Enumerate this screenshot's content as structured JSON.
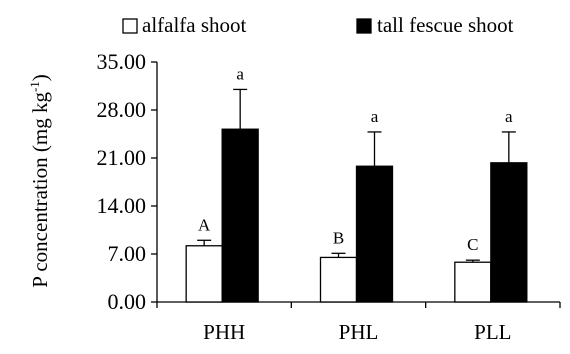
{
  "chart_data": {
    "type": "bar",
    "title": "",
    "xlabel": "",
    "ylabel": {
      "prefix": "P concentration (mg kg",
      "superscript": "-1",
      "suffix": ")"
    },
    "ylim": [
      0,
      35
    ],
    "yticks": [
      "0.00",
      "7.00",
      "14.00",
      "21.00",
      "28.00",
      "35.00"
    ],
    "categories": [
      "PHH",
      "PHL",
      "PLL"
    ],
    "legend_position": "top",
    "series": [
      {
        "name": "alfalfa shoot",
        "color": "#ffffff",
        "values": [
          8.2,
          6.5,
          5.8
        ],
        "errors": [
          0.8,
          0.6,
          0.3
        ],
        "letters": [
          "A",
          "B",
          "C"
        ]
      },
      {
        "name": "tall fescue shoot",
        "color": "#000000",
        "values": [
          25.2,
          19.8,
          20.3
        ],
        "errors": [
          5.8,
          5.0,
          4.5
        ],
        "letters": [
          "a",
          "a",
          "a"
        ]
      }
    ]
  }
}
